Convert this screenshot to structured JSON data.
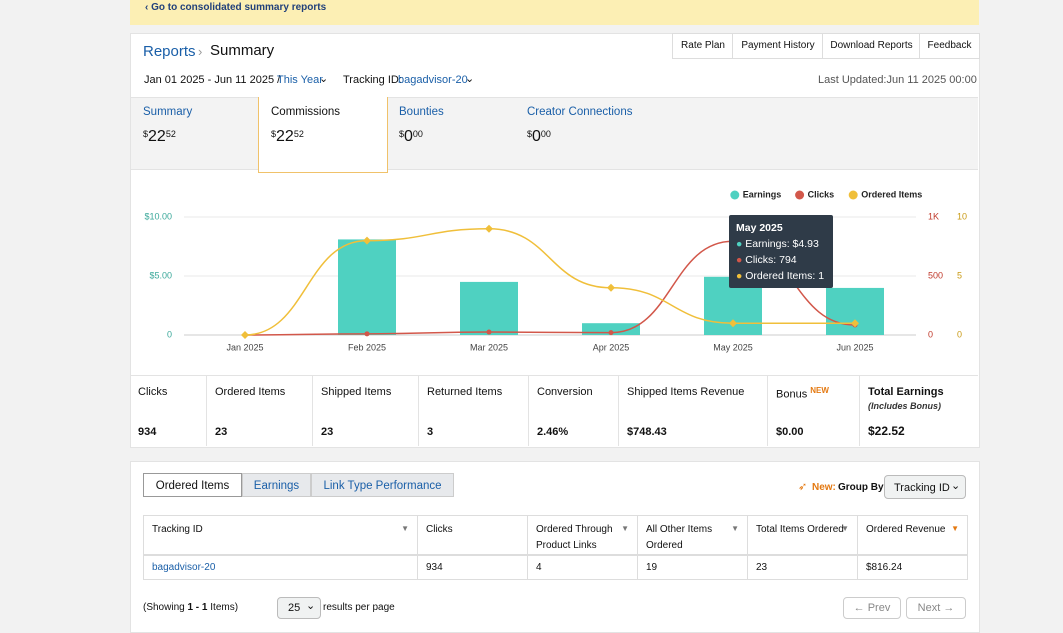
{
  "banner": {
    "link": "‹ Go to consolidated summary reports"
  },
  "header": {
    "breadcrumb": "Reports",
    "title": "Summary",
    "buttons": [
      "Rate Plan",
      "Payment History",
      "Download Reports",
      "Feedback"
    ],
    "date_range": "Jan 01 2025 - Jun 11 2025 /",
    "period": "This Year",
    "tracking_label": "Tracking ID:",
    "tracking_id": "bagadvisor-20",
    "last_updated": "Last Updated:Jun 11 2025 00:00"
  },
  "tabs": [
    {
      "label": "Summary",
      "currency": "$",
      "whole": "22",
      "cents": "52"
    },
    {
      "label": "Commissions",
      "currency": "$",
      "whole": "22",
      "cents": "52"
    },
    {
      "label": "Bounties",
      "currency": "$",
      "whole": "0",
      "cents": "00"
    },
    {
      "label": "Creator Connections",
      "currency": "$",
      "whole": "0",
      "cents": "00"
    }
  ],
  "chart_data": {
    "type": "bar",
    "categories": [
      "Jan 2025",
      "Feb 2025",
      "Mar 2025",
      "Apr 2025",
      "May 2025",
      "Jun 2025"
    ],
    "series": [
      {
        "name": "Earnings",
        "color": "#4fd1c1",
        "values": [
          0,
          8.1,
          4.5,
          1.0,
          4.93,
          3.99
        ]
      },
      {
        "name": "Clicks",
        "color": "#d2574a",
        "axis": "y2",
        "values": [
          0,
          10,
          25,
          20,
          794,
          85
        ]
      },
      {
        "name": "Ordered Items",
        "color": "#f0bf3a",
        "axis": "y3",
        "values": [
          0,
          8,
          9,
          4,
          1,
          1
        ]
      }
    ],
    "ylim": [
      0,
      10
    ],
    "yticks": [
      0,
      {
        "value": 5,
        "label": "$5.00"
      },
      {
        "value": 10,
        "label": "$10.00"
      }
    ],
    "y2lim": [
      0,
      1000
    ],
    "y2ticks": [
      0,
      500,
      {
        "value": 1000,
        "label": "1K"
      }
    ],
    "y3lim": [
      0,
      10
    ],
    "y3ticks": [
      0,
      5,
      10
    ],
    "grid": true,
    "legend": "top-right",
    "tooltip": {
      "title": "May 2025",
      "lines": [
        "Earnings: $4.93",
        "Clicks: 794",
        "Ordered Items: 1"
      ]
    }
  },
  "stats": [
    {
      "label": "Clicks",
      "value": "934"
    },
    {
      "label": "Ordered Items",
      "value": "23"
    },
    {
      "label": "Shipped Items",
      "value": "23"
    },
    {
      "label": "Returned Items",
      "value": "3"
    },
    {
      "label": "Conversion",
      "value": "2.46%"
    },
    {
      "label": "Shipped Items Revenue",
      "value": "$748.43"
    },
    {
      "label": "Bonus",
      "badge": "NEW",
      "value": "$0.00"
    },
    {
      "label": "Total Earnings",
      "note": "(Includes Bonus)",
      "value": "$22.52"
    }
  ],
  "report": {
    "tabs": [
      "Ordered Items",
      "Earnings",
      "Link Type Performance"
    ],
    "new_label": "New:",
    "group_label": "Group By:",
    "group_value": "Tracking ID",
    "table": {
      "headers": [
        "Tracking ID",
        "Clicks",
        "Ordered Through Product Links",
        "All Other Items Ordered",
        "Total Items Ordered",
        "Ordered Revenue"
      ],
      "rows": [
        [
          "bagadvisor-20",
          "934",
          "4",
          "19",
          "23",
          "$816.24"
        ]
      ]
    },
    "footer": {
      "showing_prefix": "(Showing ",
      "showing_range": "1 - 1",
      "showing_suffix": " Items)",
      "per_page": "25",
      "per_page_label": "results per page",
      "prev": "← Prev",
      "next": "Next →"
    }
  }
}
